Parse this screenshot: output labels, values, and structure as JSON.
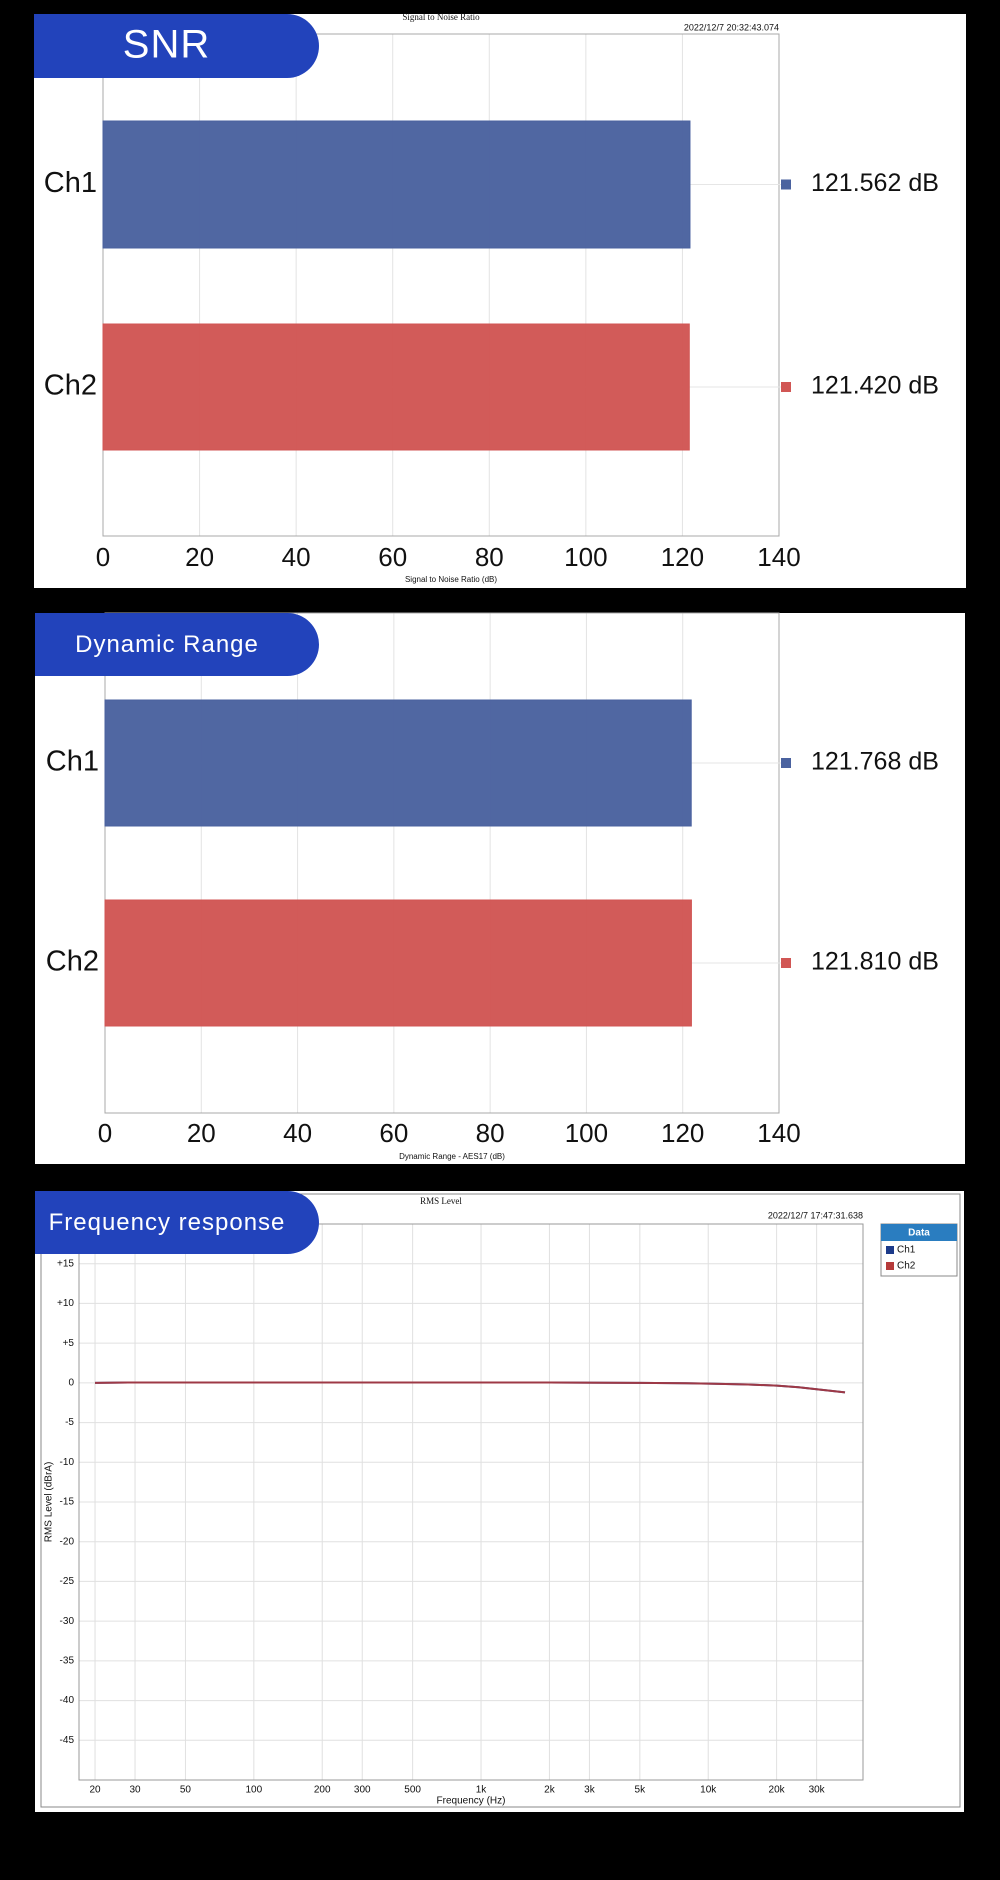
{
  "chart_data": [
    {
      "type": "barh",
      "badge": "SNR",
      "title": "Signal to Noise Ratio",
      "timestamp": "2022/12/7 20:32:43.074",
      "xlabel": "Signal to Noise Ratio (dB)",
      "categories": [
        "Ch1",
        "Ch2"
      ],
      "values": [
        121.562,
        121.42
      ],
      "value_labels": [
        "121.562 dB",
        "121.420 dB"
      ],
      "colors": [
        "#4a629f",
        "#d15654"
      ],
      "xlim": [
        0,
        140
      ],
      "xticks": [
        0,
        20,
        40,
        60,
        80,
        100,
        120,
        140
      ],
      "grid": true
    },
    {
      "type": "barh",
      "badge": "Dynamic Range",
      "xlabel": "Dynamic Range - AES17 (dB)",
      "categories": [
        "Ch1",
        "Ch2"
      ],
      "values": [
        121.768,
        121.81
      ],
      "value_labels": [
        "121.768 dB",
        "121.810 dB"
      ],
      "colors": [
        "#4a629f",
        "#d15654"
      ],
      "xlim": [
        0,
        140
      ],
      "xticks": [
        0,
        20,
        40,
        60,
        80,
        100,
        120,
        140
      ],
      "grid": true
    },
    {
      "type": "line",
      "badge": "Frequency response",
      "title": "RMS Level",
      "timestamp": "2022/12/7 17:47:31.638",
      "xlabel": "Frequency (Hz)",
      "ylabel": "RMS Level (dBrA)",
      "log_x": true,
      "grid": true,
      "legend_title": "Data",
      "x": [
        20,
        30,
        50,
        100,
        200,
        500,
        1000,
        2000,
        5000,
        8000,
        10000,
        15000,
        20000,
        25000,
        30000,
        40000
      ],
      "series": [
        {
          "name": "Ch1",
          "color": "#1c3a8a",
          "values": [
            0,
            0.05,
            0.05,
            0.05,
            0.05,
            0.05,
            0.05,
            0.05,
            0,
            -0.05,
            -0.1,
            -0.2,
            -0.35,
            -0.55,
            -0.8,
            -1.2
          ]
        },
        {
          "name": "Ch2",
          "color": "#b53a3a",
          "values": [
            0,
            0.05,
            0.05,
            0.05,
            0.05,
            0.05,
            0.05,
            0.05,
            0,
            -0.05,
            -0.1,
            -0.2,
            -0.35,
            -0.55,
            -0.8,
            -1.2
          ]
        }
      ],
      "xlim": [
        17,
        48000
      ],
      "xticks": [
        20,
        30,
        50,
        100,
        200,
        300,
        500,
        {
          "value": 1000,
          "label": "1k"
        },
        {
          "value": 2000,
          "label": "2k"
        },
        {
          "value": 3000,
          "label": "3k"
        },
        {
          "value": 5000,
          "label": "5k"
        },
        {
          "value": 10000,
          "label": "10k"
        },
        {
          "value": 20000,
          "label": "20k"
        },
        {
          "value": 30000,
          "label": "30k"
        }
      ],
      "ylim": [
        -50,
        20
      ],
      "yticks": [
        {
          "value": 15,
          "label": "+15"
        },
        {
          "value": 10,
          "label": "+10"
        },
        {
          "value": 5,
          "label": "+5"
        },
        0,
        -5,
        -10,
        -15,
        -20,
        -25,
        -30,
        -35,
        -40,
        -45
      ]
    }
  ]
}
